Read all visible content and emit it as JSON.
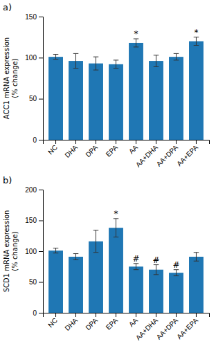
{
  "chart_data": [
    {
      "type": "bar",
      "title": "a)",
      "categories": [
        "NC",
        "DHA",
        "DPA",
        "EPA",
        "AA",
        "AA+DHA",
        "AA+DPA",
        "AA+EPA"
      ],
      "values": [
        101,
        96,
        93,
        92,
        118,
        96,
        101,
        120
      ],
      "errors": [
        3,
        9,
        8,
        5,
        5,
        7,
        4,
        5
      ],
      "annotations": [
        {
          "category": "AA",
          "text": "*"
        },
        {
          "category": "AA+EPA",
          "text": "*"
        }
      ],
      "ylabel": "ACC1 mRNA expression\n(% change)",
      "ylim": [
        0,
        150
      ],
      "yticks": [
        0,
        50,
        100,
        150
      ],
      "grid": false
    },
    {
      "type": "bar",
      "title": "b)",
      "categories": [
        "NC",
        "DHA",
        "DPA",
        "EPA",
        "AA",
        "AA+DHA",
        "AA+DPA",
        "AA+EPA"
      ],
      "values": [
        101,
        91,
        116,
        138,
        75,
        70,
        65,
        91
      ],
      "errors": [
        4,
        5,
        18,
        15,
        5,
        8,
        5,
        7
      ],
      "annotations": [
        {
          "category": "EPA",
          "text": "*"
        },
        {
          "category": "AA",
          "text": "#"
        },
        {
          "category": "AA+DHA",
          "text": "#"
        },
        {
          "category": "AA+DPA",
          "text": "#"
        }
      ],
      "ylabel": "SCD1 mRNA expression\n(% change)",
      "ylim": [
        0,
        200
      ],
      "yticks": [
        0,
        50,
        100,
        150,
        200
      ],
      "grid": false
    }
  ]
}
